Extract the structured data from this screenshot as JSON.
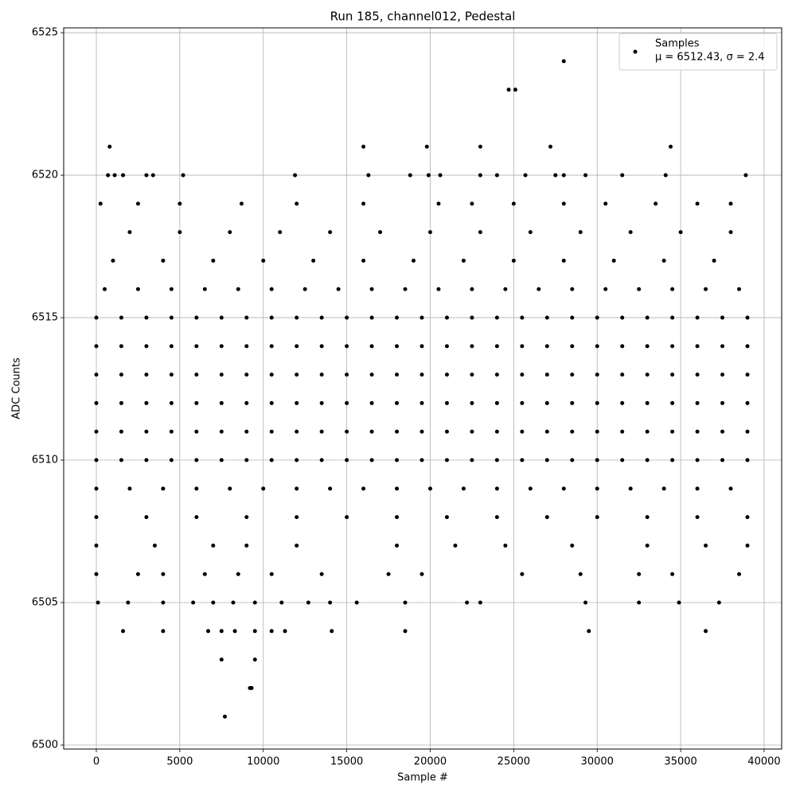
{
  "chart_data": {
    "type": "scatter",
    "title": "Run 185, channel012, Pedestal",
    "x_label": "Sample #",
    "y_label": "ADC Counts",
    "xlim": [
      -1955,
      41050
    ],
    "ylim": [
      6499.86,
      6525.17
    ],
    "xticks": [
      0,
      5000,
      10000,
      15000,
      20000,
      25000,
      30000,
      35000,
      40000
    ],
    "yticks": [
      6500,
      6505,
      6510,
      6515,
      6520,
      6525
    ],
    "grid": true,
    "legend": "upper right",
    "legend_note": "μ = 6512.43, σ = 2.4",
    "series": [
      {
        "name": "Samples",
        "color": "#000000",
        "x": [
          0,
          1500,
          3000,
          4500,
          6000,
          7500,
          9000,
          10500,
          12000,
          13500,
          15000,
          16500,
          18000,
          19500,
          21000,
          22500,
          24000,
          25500,
          27000,
          28500,
          30000,
          31500,
          33000,
          34500,
          36000,
          37500,
          39000,
          0,
          1500,
          3000,
          4500,
          6000,
          7500,
          9000,
          10500,
          12000,
          13500,
          15000,
          16500,
          18000,
          19500,
          21000,
          22500,
          24000,
          25500,
          27000,
          28500,
          30000,
          31500,
          33000,
          34500,
          36000,
          37500,
          39000,
          0,
          1500,
          3000,
          4500,
          6000,
          7500,
          9000,
          10500,
          12000,
          13500,
          15000,
          16500,
          18000,
          19500,
          21000,
          22500,
          24000,
          25500,
          27000,
          28500,
          30000,
          31500,
          33000,
          34500,
          36000,
          37500,
          39000,
          0,
          1500,
          3000,
          4500,
          6000,
          7500,
          9000,
          10500,
          12000,
          13500,
          15000,
          16500,
          18000,
          19500,
          21000,
          22500,
          24000,
          25500,
          27000,
          28500,
          30000,
          31500,
          33000,
          34500,
          36000,
          37500,
          39000,
          0,
          1500,
          3000,
          4500,
          6000,
          7500,
          9000,
          10500,
          12000,
          13500,
          15000,
          16500,
          18000,
          19500,
          21000,
          22500,
          24000,
          25500,
          27000,
          28500,
          30000,
          31500,
          33000,
          34500,
          36000,
          37500,
          39000,
          0,
          1500,
          3000,
          4500,
          6000,
          7500,
          9000,
          10500,
          12000,
          13500,
          15000,
          16500,
          18000,
          19500,
          21000,
          22500,
          24000,
          25500,
          27000,
          28500,
          30000,
          31500,
          33000,
          34500,
          36000,
          37500,
          39000,
          0,
          2000,
          4000,
          6000,
          8000,
          10000,
          12000,
          14000,
          16000,
          18000,
          20000,
          22000,
          24000,
          26000,
          28000,
          30000,
          32000,
          34000,
          36000,
          38000,
          500,
          2500,
          4500,
          6500,
          8500,
          10500,
          12500,
          14500,
          16500,
          18500,
          20500,
          22500,
          24500,
          26500,
          28500,
          30500,
          32500,
          34500,
          36500,
          38500,
          0,
          3000,
          6000,
          9000,
          12000,
          15000,
          18000,
          21000,
          24000,
          27000,
          30000,
          33000,
          36000,
          39000,
          1000,
          4000,
          7000,
          10000,
          13000,
          16000,
          19000,
          22000,
          25000,
          28000,
          31000,
          34000,
          37000,
          2000,
          5000,
          8000,
          11000,
          14000,
          17000,
          20000,
          23000,
          26000,
          29000,
          32000,
          35000,
          38000,
          0,
          3500,
          7000,
          9000,
          12000,
          18000,
          21500,
          24500,
          28500,
          33000,
          36500,
          39000,
          0,
          2500,
          4000,
          6500,
          8500,
          10500,
          13500,
          17500,
          19500,
          25500,
          29000,
          32500,
          34500,
          38500,
          250,
          2500,
          5000,
          8700,
          12000,
          16000,
          20500,
          22500,
          25000,
          28000,
          30500,
          33500,
          36000,
          38000,
          700,
          1100,
          1600,
          3000,
          3400,
          5200,
          11900,
          16300,
          18800,
          19900,
          20600,
          23000,
          24000,
          25700,
          27500,
          28000,
          29300,
          31500,
          34100,
          38900,
          800,
          16000,
          19800,
          23000,
          27200,
          34400,
          24700,
          25100,
          28000,
          100,
          1900,
          4000,
          5800,
          7000,
          8200,
          9500,
          11100,
          12700,
          14000,
          15600,
          18500,
          22200,
          23000,
          29300,
          32500,
          34900,
          37300,
          1600,
          4000,
          6700,
          7500,
          8300,
          9500,
          10500,
          11300,
          14100,
          18500,
          29500,
          36500,
          7500,
          9500,
          9200,
          9300,
          7700
        ],
        "values": [
          6510,
          6510,
          6510,
          6510,
          6510,
          6510,
          6510,
          6510,
          6510,
          6510,
          6510,
          6510,
          6510,
          6510,
          6510,
          6510,
          6510,
          6510,
          6510,
          6510,
          6510,
          6510,
          6510,
          6510,
          6510,
          6510,
          6510,
          6511,
          6511,
          6511,
          6511,
          6511,
          6511,
          6511,
          6511,
          6511,
          6511,
          6511,
          6511,
          6511,
          6511,
          6511,
          6511,
          6511,
          6511,
          6511,
          6511,
          6511,
          6511,
          6511,
          6511,
          6511,
          6511,
          6511,
          6512,
          6512,
          6512,
          6512,
          6512,
          6512,
          6512,
          6512,
          6512,
          6512,
          6512,
          6512,
          6512,
          6512,
          6512,
          6512,
          6512,
          6512,
          6512,
          6512,
          6512,
          6512,
          6512,
          6512,
          6512,
          6512,
          6512,
          6513,
          6513,
          6513,
          6513,
          6513,
          6513,
          6513,
          6513,
          6513,
          6513,
          6513,
          6513,
          6513,
          6513,
          6513,
          6513,
          6513,
          6513,
          6513,
          6513,
          6513,
          6513,
          6513,
          6513,
          6513,
          6513,
          6513,
          6514,
          6514,
          6514,
          6514,
          6514,
          6514,
          6514,
          6514,
          6514,
          6514,
          6514,
          6514,
          6514,
          6514,
          6514,
          6514,
          6514,
          6514,
          6514,
          6514,
          6514,
          6514,
          6514,
          6514,
          6514,
          6514,
          6514,
          6515,
          6515,
          6515,
          6515,
          6515,
          6515,
          6515,
          6515,
          6515,
          6515,
          6515,
          6515,
          6515,
          6515,
          6515,
          6515,
          6515,
          6515,
          6515,
          6515,
          6515,
          6515,
          6515,
          6515,
          6515,
          6515,
          6515,
          6509,
          6509,
          6509,
          6509,
          6509,
          6509,
          6509,
          6509,
          6509,
          6509,
          6509,
          6509,
          6509,
          6509,
          6509,
          6509,
          6509,
          6509,
          6509,
          6509,
          6516,
          6516,
          6516,
          6516,
          6516,
          6516,
          6516,
          6516,
          6516,
          6516,
          6516,
          6516,
          6516,
          6516,
          6516,
          6516,
          6516,
          6516,
          6516,
          6516,
          6508,
          6508,
          6508,
          6508,
          6508,
          6508,
          6508,
          6508,
          6508,
          6508,
          6508,
          6508,
          6508,
          6508,
          6517,
          6517,
          6517,
          6517,
          6517,
          6517,
          6517,
          6517,
          6517,
          6517,
          6517,
          6517,
          6517,
          6518,
          6518,
          6518,
          6518,
          6518,
          6518,
          6518,
          6518,
          6518,
          6518,
          6518,
          6518,
          6518,
          6507,
          6507,
          6507,
          6507,
          6507,
          6507,
          6507,
          6507,
          6507,
          6507,
          6507,
          6507,
          6506,
          6506,
          6506,
          6506,
          6506,
          6506,
          6506,
          6506,
          6506,
          6506,
          6506,
          6506,
          6506,
          6506,
          6519,
          6519,
          6519,
          6519,
          6519,
          6519,
          6519,
          6519,
          6519,
          6519,
          6519,
          6519,
          6519,
          6519,
          6520,
          6520,
          6520,
          6520,
          6520,
          6520,
          6520,
          6520,
          6520,
          6520,
          6520,
          6520,
          6520,
          6520,
          6520,
          6520,
          6520,
          6520,
          6520,
          6520,
          6521,
          6521,
          6521,
          6521,
          6521,
          6521,
          6523,
          6523,
          6524,
          6505,
          6505,
          6505,
          6505,
          6505,
          6505,
          6505,
          6505,
          6505,
          6505,
          6505,
          6505,
          6505,
          6505,
          6505,
          6505,
          6505,
          6505,
          6504,
          6504,
          6504,
          6504,
          6504,
          6504,
          6504,
          6504,
          6504,
          6504,
          6504,
          6504,
          6503,
          6503,
          6502,
          6502,
          6501
        ]
      }
    ]
  }
}
